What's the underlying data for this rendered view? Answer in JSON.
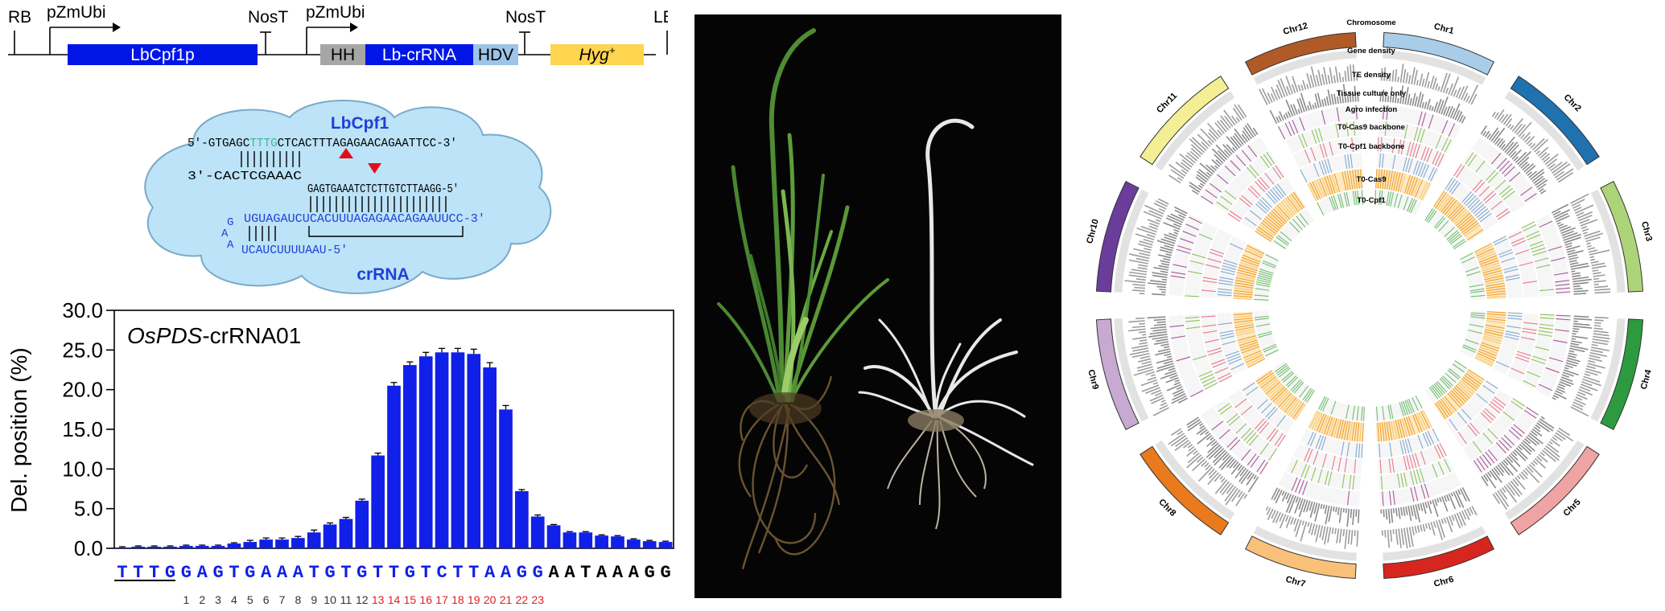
{
  "construct": {
    "labels": [
      "RB",
      "pZmUbi",
      "NosT",
      "pZmUbi",
      "NosT",
      "LB"
    ],
    "boxes": [
      "LbCpf1p",
      "HH",
      "Lb-crRNA",
      "HDV",
      "Hyg"
    ],
    "hyg_sup": "+"
  },
  "complex": {
    "protein": "LbCpf1",
    "rna": "crRNA",
    "target_top_pre": "5′-GTGAGC",
    "target_top_pam": "TTTG",
    "target_top_post": "CTCACTTTAGAGAACAGAATTCC-3′",
    "target_bottom_left": "3′-CACTCGAAAC",
    "target_bottom_right": "GAGTGAAATCTCTTGTCTTAAGG-5′",
    "crrna_line1": "UGUAGAUCUCACUUUAGAGAACAGAAUUCC-3′",
    "crrna_line2": "UCAUCUUUUAAU-5′",
    "loop_a1": "G",
    "loop_a2": "A",
    "loop_a3": "A"
  },
  "chart_data": {
    "type": "bar",
    "title_italic": "OsPDS",
    "title_rest": "-crRNA01",
    "ylabel": "Del. position (%)",
    "ylim": [
      0,
      30
    ],
    "yticks": [
      "0.0",
      "5.0",
      "10.0",
      "15.0",
      "20.0",
      "25.0",
      "30.0"
    ],
    "categories": [
      "T",
      "T",
      "T",
      "G",
      "G",
      "A",
      "G",
      "T",
      "G",
      "A",
      "A",
      "A",
      "T",
      "G",
      "T",
      "G",
      "T",
      "T",
      "G",
      "T",
      "C",
      "T",
      "T",
      "A",
      "A",
      "G",
      "G",
      "A",
      "A",
      "T",
      "A",
      "A",
      "A",
      "G",
      "G"
    ],
    "values": [
      0.1,
      0.2,
      0.2,
      0.2,
      0.3,
      0.3,
      0.3,
      0.6,
      0.8,
      1.1,
      1.1,
      1.3,
      2.0,
      3.0,
      3.7,
      6.0,
      11.7,
      20.5,
      23.1,
      24.2,
      24.7,
      24.7,
      24.5,
      22.8,
      17.5,
      7.2,
      4.0,
      2.9,
      2.0,
      2.0,
      1.6,
      1.5,
      1.1,
      0.9,
      0.8
    ],
    "errors": [
      0.1,
      0.1,
      0.1,
      0.1,
      0.1,
      0.1,
      0.1,
      0.1,
      0.2,
      0.2,
      0.2,
      0.2,
      0.3,
      0.2,
      0.2,
      0.2,
      0.3,
      0.4,
      0.4,
      0.5,
      0.5,
      0.5,
      0.6,
      0.6,
      0.5,
      0.2,
      0.2,
      0.1,
      0.1,
      0.1,
      0.1,
      0.1,
      0.1,
      0.1,
      0.1
    ],
    "position_labels": [
      "1",
      "2",
      "3",
      "4",
      "5",
      "6",
      "7",
      "8",
      "9",
      "10",
      "11",
      "12",
      "13",
      "14",
      "15",
      "16",
      "17",
      "18",
      "19",
      "20",
      "21",
      "22",
      "23"
    ]
  },
  "circos": {
    "chromosomes": [
      "Chr1",
      "Chr2",
      "Chr3",
      "Chr4",
      "Chr5",
      "Chr6",
      "Chr7",
      "Chr8",
      "Chr9",
      "Chr10",
      "Chr11",
      "Chr12"
    ],
    "chr_colors": [
      "#a9cde9",
      "#2071b0",
      "#aed47a",
      "#2d9a3f",
      "#f0a3a3",
      "#d7261e",
      "#f9c07a",
      "#e97a1d",
      "#c7a9d2",
      "#6a3d9a",
      "#f4ee94",
      "#b05a28"
    ],
    "track_labels": [
      "Chromosome",
      "Gene density",
      "TE density",
      "Tissue culture only",
      "Agro infection",
      "T0-Cas9 backbone",
      "T0-Cpf1 backbone",
      "T0-Cas9",
      "T0-Cpf1"
    ]
  }
}
